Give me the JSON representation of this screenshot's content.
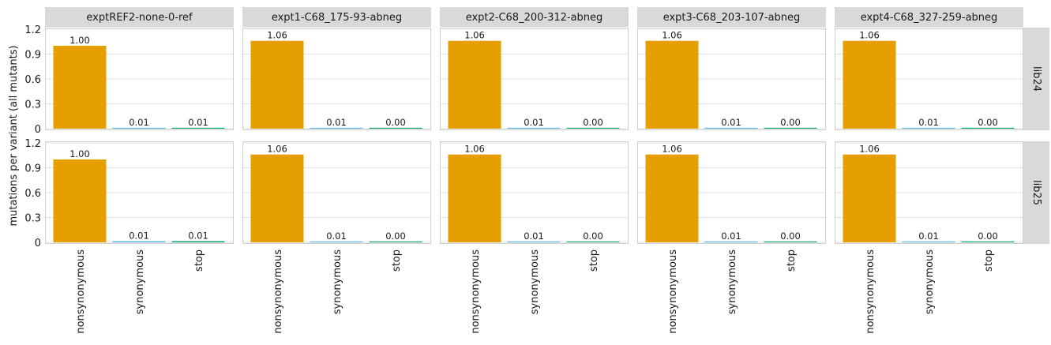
{
  "chart_data": {
    "type": "bar",
    "ylabel": "mutations per variant (all mutants)",
    "ylim": [
      0,
      1.25
    ],
    "yticks": [
      0,
      0.3,
      0.6,
      0.9,
      1.2
    ],
    "ytick_labels": [
      "0",
      "0.3",
      "0.6",
      "0.9",
      "1.2"
    ],
    "grid": true,
    "categories": [
      "nonsynonymous",
      "synonymous",
      "stop"
    ],
    "category_colors": [
      "#e69f00",
      "#56b4e9",
      "#009e73"
    ],
    "columns": [
      "exptREF2-none-0-ref",
      "expt1-C68_175-93-abneg",
      "expt2-C68_200-312-abneg",
      "expt3-C68_203-107-abneg",
      "expt4-C68_327-259-abneg"
    ],
    "rows": [
      "lib24",
      "lib25"
    ],
    "panels": [
      {
        "row": "lib24",
        "column": "exptREF2-none-0-ref",
        "values": [
          1.0,
          0.01,
          0.01
        ],
        "labels": [
          "1.00",
          "0.01",
          "0.01"
        ]
      },
      {
        "row": "lib24",
        "column": "expt1-C68_175-93-abneg",
        "values": [
          1.06,
          0.01,
          0.0
        ],
        "labels": [
          "1.06",
          "0.01",
          "0.00"
        ]
      },
      {
        "row": "lib24",
        "column": "expt2-C68_200-312-abneg",
        "values": [
          1.06,
          0.01,
          0.0
        ],
        "labels": [
          "1.06",
          "0.01",
          "0.00"
        ]
      },
      {
        "row": "lib24",
        "column": "expt3-C68_203-107-abneg",
        "values": [
          1.06,
          0.01,
          0.0
        ],
        "labels": [
          "1.06",
          "0.01",
          "0.00"
        ]
      },
      {
        "row": "lib24",
        "column": "expt4-C68_327-259-abneg",
        "values": [
          1.06,
          0.01,
          0.0
        ],
        "labels": [
          "1.06",
          "0.01",
          "0.00"
        ]
      },
      {
        "row": "lib25",
        "column": "exptREF2-none-0-ref",
        "values": [
          1.0,
          0.014,
          0.014
        ],
        "labels": [
          "1.00",
          "0.01",
          "0.01"
        ]
      },
      {
        "row": "lib25",
        "column": "expt1-C68_175-93-abneg",
        "values": [
          1.06,
          0.01,
          0.0
        ],
        "labels": [
          "1.06",
          "0.01",
          "0.00"
        ]
      },
      {
        "row": "lib25",
        "column": "expt2-C68_200-312-abneg",
        "values": [
          1.06,
          0.01,
          0.004
        ],
        "labels": [
          "1.06",
          "0.01",
          "0.00"
        ]
      },
      {
        "row": "lib25",
        "column": "expt3-C68_203-107-abneg",
        "values": [
          1.06,
          0.01,
          0.004
        ],
        "labels": [
          "1.06",
          "0.01",
          "0.00"
        ]
      },
      {
        "row": "lib25",
        "column": "expt4-C68_327-259-abneg",
        "values": [
          1.06,
          0.01,
          0.0
        ],
        "labels": [
          "1.06",
          "0.01",
          "0.00"
        ]
      }
    ]
  }
}
